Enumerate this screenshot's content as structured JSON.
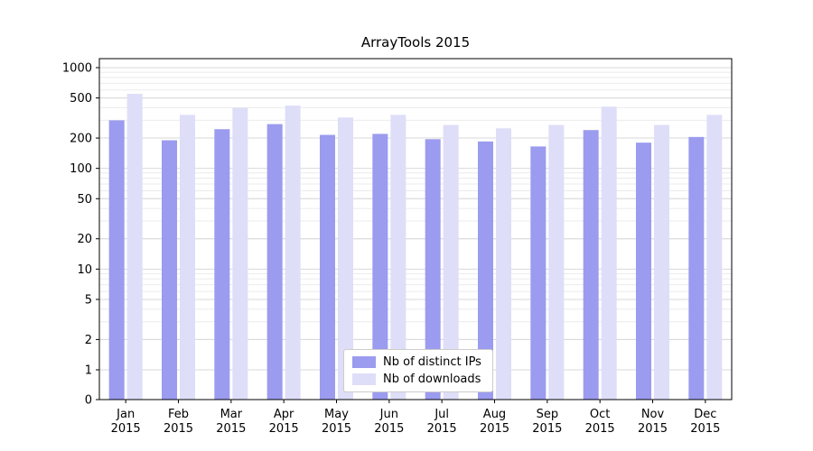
{
  "chart_data": {
    "type": "bar",
    "title": "ArrayTools 2015",
    "categories": [
      "Jan",
      "Feb",
      "Mar",
      "Apr",
      "May",
      "Jun",
      "Jul",
      "Aug",
      "Sep",
      "Oct",
      "Nov",
      "Dec"
    ],
    "year": "2015",
    "series": [
      {
        "name": "Nb of distinct IPs",
        "color": "#9b9bef",
        "values": [
          300,
          190,
          245,
          275,
          215,
          220,
          195,
          185,
          165,
          240,
          180,
          205
        ]
      },
      {
        "name": "Nb of downloads",
        "color": "#dedef9",
        "values": [
          550,
          340,
          400,
          420,
          320,
          340,
          270,
          250,
          270,
          410,
          270,
          340
        ]
      }
    ],
    "yscale": "log",
    "yticks": [
      0,
      1,
      2,
      5,
      10,
      20,
      50,
      100,
      200,
      500,
      1000
    ],
    "ylim": [
      0,
      1000
    ],
    "grid": "horizontal",
    "legend_position": "lower center",
    "colors": {
      "major_grid": "#d8d8d8",
      "minor_grid": "#ebebeb",
      "axis": "#000000",
      "legend_border": "#cccccc"
    }
  }
}
